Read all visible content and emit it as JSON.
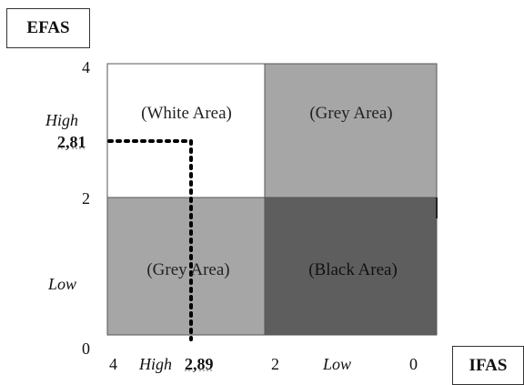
{
  "labels": {
    "y_axis_box": "EFAS",
    "x_axis_box": "IFAS"
  },
  "y_axis": {
    "tick_top": "4",
    "tick_mid": "2",
    "tick_bottom": "0",
    "high_label": "High",
    "low_label": "Low",
    "marker_value": "2,81"
  },
  "x_axis": {
    "tick_left": "4",
    "tick_mid": "2",
    "tick_right": "0",
    "high_label": "High",
    "low_label": "Low",
    "marker_value": "2,89"
  },
  "quadrants": {
    "top_left": "(White Area)",
    "top_right": "(Grey Area)",
    "bottom_left": "(Grey Area)",
    "bottom_right": "(Black Area)"
  },
  "colors": {
    "white_area": "#ffffff",
    "grey_area": "#a6a6a6",
    "black_area": "#5e5e5e",
    "dotted_line": "#000000"
  }
}
